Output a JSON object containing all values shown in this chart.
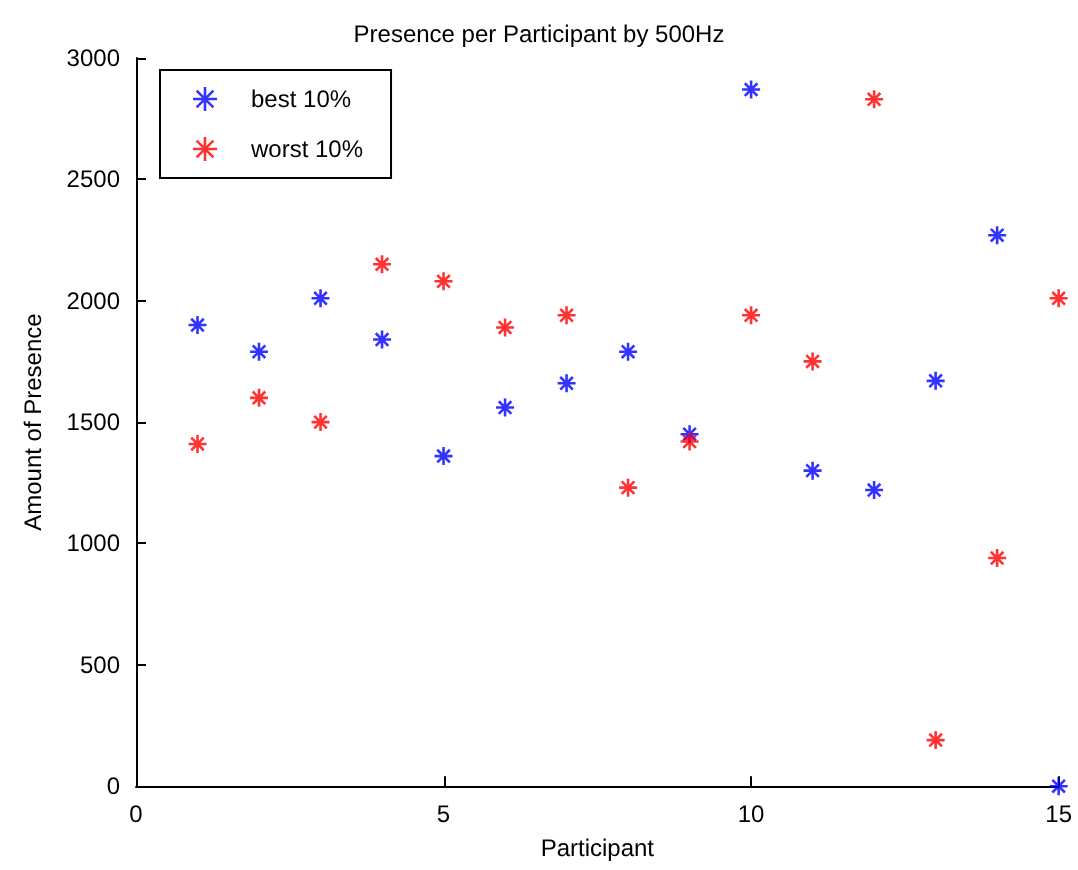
{
  "chart_data": {
    "type": "scatter",
    "title": "Presence per Participant by 500Hz",
    "xlabel": "Participant",
    "ylabel": "Amount of Presence",
    "x": [
      1,
      2,
      3,
      4,
      5,
      6,
      7,
      8,
      9,
      10,
      11,
      12,
      13,
      14,
      15
    ],
    "series": [
      {
        "name": "best 10%",
        "color": "#0000ff",
        "values": [
          1900,
          1790,
          2010,
          1840,
          1360,
          1560,
          1660,
          1790,
          1450,
          2870,
          1300,
          1220,
          1670,
          2270,
          0
        ]
      },
      {
        "name": "worst 10%",
        "color": "#ff0000",
        "values": [
          1410,
          1600,
          1500,
          2150,
          2080,
          1890,
          1940,
          1230,
          1420,
          1940,
          1750,
          2830,
          190,
          940,
          2010
        ]
      }
    ],
    "xlim": [
      0,
      15
    ],
    "xticks": [
      0,
      5,
      10,
      15
    ],
    "ylim": [
      0,
      3000
    ],
    "yticks": [
      0,
      500,
      1000,
      1500,
      2000,
      2500,
      3000
    ],
    "grid": false,
    "legend": "top left",
    "marker": "cross"
  }
}
